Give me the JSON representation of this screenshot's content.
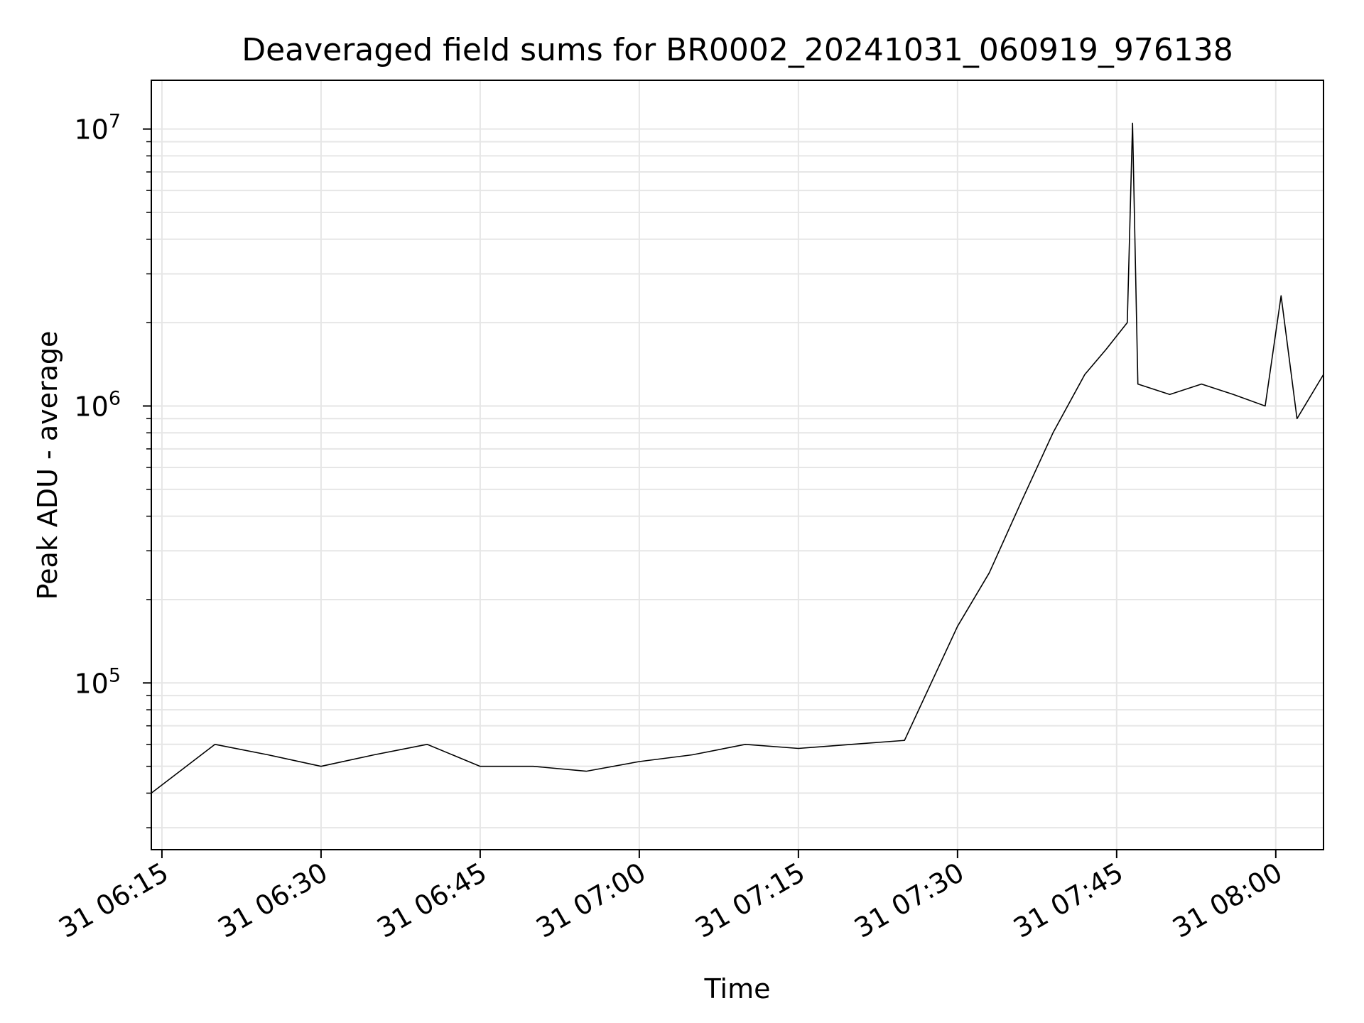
{
  "chart_data": {
    "type": "line",
    "title": "Deaveraged field sums for BR0002_20241031_060919_976138",
    "xlabel": "Time",
    "ylabel": "Peak ADU - average",
    "yscale": "log",
    "ylim": [
      25000,
      15000000
    ],
    "xlim": [
      "2024-10-31T06:14:00",
      "2024-10-31T08:04:30"
    ],
    "grid": true,
    "x_ticks": [
      "31 06:15",
      "31 06:30",
      "31 06:45",
      "31 07:00",
      "31 07:15",
      "31 07:30",
      "31 07:45",
      "31 08:00"
    ],
    "y_ticks": [
      {
        "base": "10",
        "exp": "5",
        "value": 100000
      },
      {
        "base": "10",
        "exp": "6",
        "value": 1000000
      },
      {
        "base": "10",
        "exp": "7",
        "value": 10000000
      }
    ],
    "line_color": "#000000",
    "series": [
      {
        "x": [
          "2024-10-31T06:14:00",
          "2024-10-31T06:20:00",
          "2024-10-31T06:25:00",
          "2024-10-31T06:30:00",
          "2024-10-31T06:35:00",
          "2024-10-31T06:40:00",
          "2024-10-31T06:45:00",
          "2024-10-31T06:50:00",
          "2024-10-31T06:55:00",
          "2024-10-31T07:00:00",
          "2024-10-31T07:05:00",
          "2024-10-31T07:10:00",
          "2024-10-31T07:15:00",
          "2024-10-31T07:20:00",
          "2024-10-31T07:25:00",
          "2024-10-31T07:30:00",
          "2024-10-31T07:33:00",
          "2024-10-31T07:36:00",
          "2024-10-31T07:39:00",
          "2024-10-31T07:42:00",
          "2024-10-31T07:44:00",
          "2024-10-31T07:46:00",
          "2024-10-31T07:46:30",
          "2024-10-31T07:47:00",
          "2024-10-31T07:50:00",
          "2024-10-31T07:53:00",
          "2024-10-31T07:56:00",
          "2024-10-31T07:59:00",
          "2024-10-31T08:00:30",
          "2024-10-31T08:02:00",
          "2024-10-31T08:04:30"
        ],
        "values": [
          40000,
          60000,
          55000,
          50000,
          55000,
          60000,
          50000,
          50000,
          48000,
          52000,
          55000,
          60000,
          58000,
          60000,
          62000,
          160000,
          250000,
          450000,
          800000,
          1300000,
          1600000,
          2000000,
          10500000,
          1200000,
          1100000,
          1200000,
          1100000,
          1000000,
          2500000,
          900000,
          1300000
        ]
      }
    ]
  }
}
